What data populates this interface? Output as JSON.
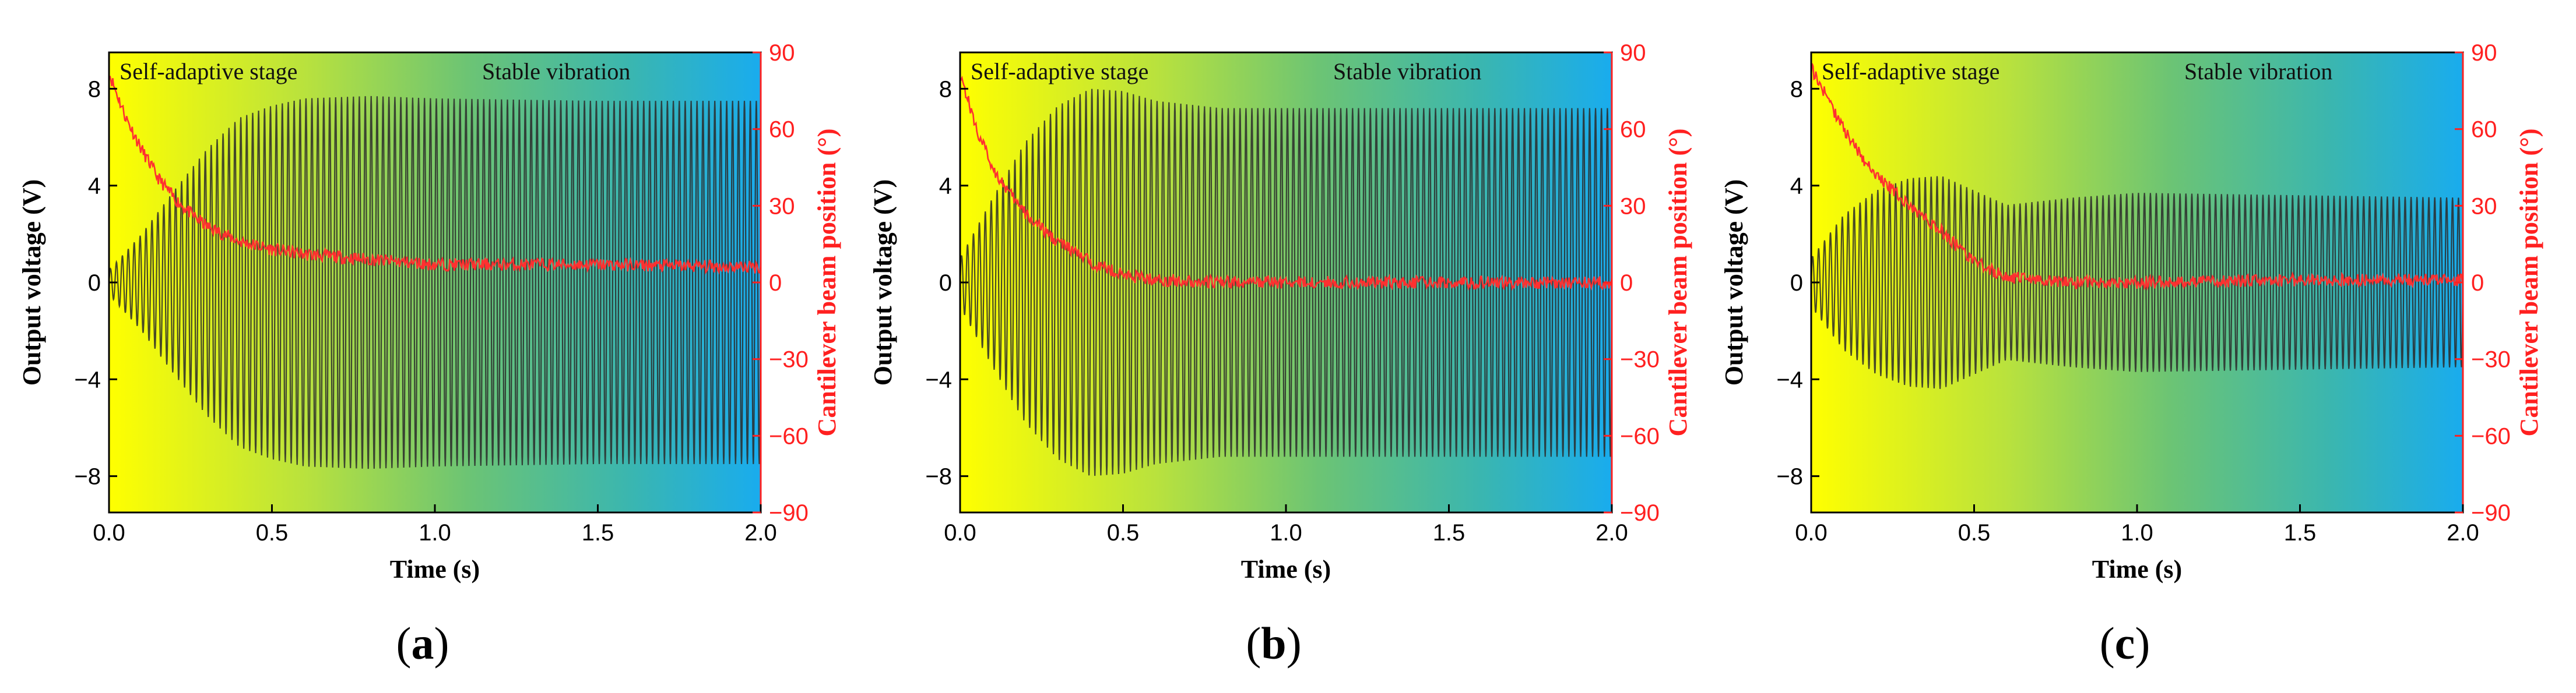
{
  "colors": {
    "gradient": [
      "#ffff00",
      "#b9e23d",
      "#6cc474",
      "#3ab6b0",
      "#19acee"
    ],
    "voltage_line": "#2a2a2a",
    "position_line": "#ff3030",
    "right_axis": "#ff2020"
  },
  "panels": [
    {
      "label": "a",
      "stage_labels": [
        "Self-adaptive stage",
        "Stable vibration"
      ],
      "chart_data": {
        "type": "line",
        "xlabel": "Time (s)",
        "ylabel_left": "Output voltage (V)",
        "ylabel_right": "Cantilever beam position (°)",
        "xlim": [
          0.0,
          2.0
        ],
        "ylim_left": [
          -9.5,
          9.5
        ],
        "ylim_right": [
          -90,
          90
        ],
        "x_ticks": [
          "0.0",
          "0.5",
          "1.0",
          "1.5",
          "2.0"
        ],
        "y_ticks_left": [
          "-8",
          "-4",
          "0",
          "4",
          "8"
        ],
        "y_ticks_right": [
          "-90",
          "-60",
          "-30",
          "0",
          "30",
          "60",
          "90"
        ],
        "series": [
          {
            "name": "Output voltage",
            "axis": "left",
            "frequency_hz": 55,
            "envelope": {
              "t": [
                0.0,
                0.1,
                0.2,
                0.3,
                0.4,
                0.5,
                0.6,
                0.8,
                1.0,
                1.5,
                2.0
              ],
              "amp": [
                0.5,
                2.0,
                3.8,
                5.5,
                6.8,
                7.3,
                7.6,
                7.7,
                7.6,
                7.5,
                7.5
              ]
            }
          },
          {
            "name": "Cantilever beam position",
            "axis": "right",
            "t": [
              0.0,
              0.05,
              0.1,
              0.15,
              0.2,
              0.25,
              0.3,
              0.35,
              0.4,
              0.5,
              0.6,
              0.8,
              1.0,
              1.5,
              2.0
            ],
            "values": [
              82,
              65,
              52,
              41,
              33,
              27,
              22,
              19,
              16,
              13,
              11,
              9,
              7,
              7,
              6
            ]
          }
        ]
      }
    },
    {
      "label": "b",
      "stage_labels": [
        "Self-adaptive stage",
        "Stable vibration"
      ],
      "chart_data": {
        "type": "line",
        "xlabel": "Time (s)",
        "ylabel_left": "Output voltage (V)",
        "ylabel_right": "Cantilever beam position (°)",
        "xlim": [
          0.0,
          2.0
        ],
        "ylim_left": [
          -9.5,
          9.5
        ],
        "ylim_right": [
          -90,
          90
        ],
        "x_ticks": [
          "0.0",
          "0.5",
          "1.0",
          "1.5",
          "2.0"
        ],
        "y_ticks_left": [
          "-8",
          "-4",
          "0",
          "4",
          "8"
        ],
        "y_ticks_right": [
          "-90",
          "-60",
          "-30",
          "0",
          "30",
          "60",
          "90"
        ],
        "series": [
          {
            "name": "Output voltage",
            "axis": "left",
            "frequency_hz": 55,
            "envelope": {
              "t": [
                0.0,
                0.1,
                0.2,
                0.3,
                0.4,
                0.5,
                0.6,
                0.8,
                1.0,
                1.5,
                2.0
              ],
              "amp": [
                1.0,
                3.5,
                5.8,
                7.3,
                8.0,
                7.9,
                7.5,
                7.2,
                7.2,
                7.2,
                7.2
              ]
            }
          },
          {
            "name": "Cantilever beam position",
            "axis": "right",
            "t": [
              0.0,
              0.05,
              0.1,
              0.15,
              0.2,
              0.25,
              0.3,
              0.35,
              0.4,
              0.5,
              0.6,
              0.8,
              1.0,
              1.5,
              2.0
            ],
            "values": [
              82,
              60,
              45,
              35,
              27,
              21,
              16,
              12,
              8,
              3,
              1,
              0,
              0,
              0,
              0
            ]
          }
        ]
      }
    },
    {
      "label": "c",
      "stage_labels": [
        "Self-adaptive stage",
        "Stable vibration"
      ],
      "chart_data": {
        "type": "line",
        "xlabel": "Time (s)",
        "ylabel_left": "Output voltage (V)",
        "ylabel_right": "Cantilever beam position (°)",
        "xlim": [
          0.0,
          2.0
        ],
        "ylim_left": [
          -9.5,
          9.5
        ],
        "ylim_right": [
          -90,
          90
        ],
        "x_ticks": [
          "0.0",
          "0.5",
          "1.0",
          "1.5",
          "2.0"
        ],
        "y_ticks_left": [
          "-8",
          "-4",
          "0",
          "4",
          "8"
        ],
        "y_ticks_right": [
          "-90",
          "-60",
          "-30",
          "0",
          "30",
          "60",
          "90"
        ],
        "series": [
          {
            "name": "Output voltage",
            "axis": "left",
            "frequency_hz": 55,
            "envelope": {
              "t": [
                0.0,
                0.1,
                0.2,
                0.3,
                0.4,
                0.5,
                0.6,
                0.8,
                1.0,
                1.5,
                2.0
              ],
              "amp": [
                1.0,
                2.8,
                3.8,
                4.3,
                4.4,
                3.8,
                3.2,
                3.5,
                3.7,
                3.6,
                3.5
              ]
            }
          },
          {
            "name": "Cantilever beam position",
            "axis": "right",
            "t": [
              0.0,
              0.05,
              0.1,
              0.15,
              0.2,
              0.25,
              0.3,
              0.35,
              0.4,
              0.45,
              0.5,
              0.6,
              0.8,
              1.0,
              1.5,
              2.0
            ],
            "values": [
              84,
              72,
              60,
              50,
              42,
              36,
              30,
              25,
              20,
              14,
              8,
              2,
              0,
              0,
              1,
              1
            ]
          }
        ]
      }
    }
  ]
}
